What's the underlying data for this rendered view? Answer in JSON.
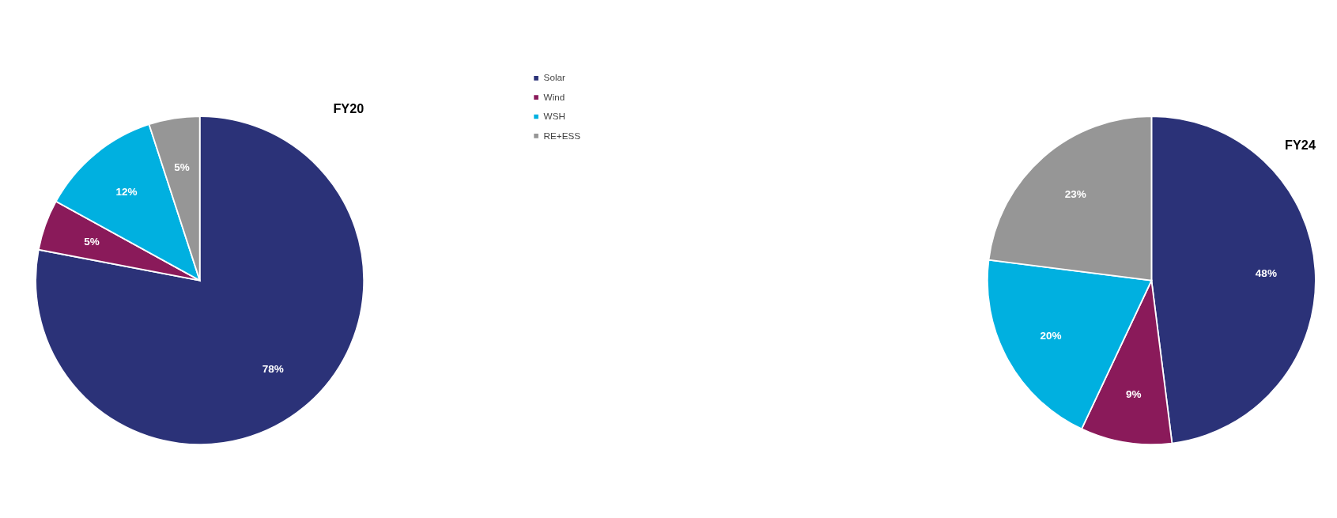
{
  "chart_data": [
    {
      "type": "pie",
      "title": "FY20",
      "categories": [
        "Solar",
        "Wind",
        "WSH",
        "RE+ESS"
      ],
      "values": [
        78,
        5,
        12,
        5
      ],
      "colors": [
        "#2b3278",
        "#8a1a5a",
        "#00b0e0",
        "#969696"
      ],
      "value_labels": [
        "78%",
        "5%",
        "12%",
        "5%"
      ],
      "legend": "top"
    },
    {
      "type": "pie",
      "title": "FY24",
      "categories": [
        null,
        null,
        null,
        null
      ],
      "values": [
        48,
        9,
        20,
        23
      ],
      "colors": [
        "#2b3278",
        "#8a1a5a",
        "#00b0e0",
        "#969696"
      ],
      "value_labels": [
        "48%",
        "9%",
        "20%",
        "23%"
      ]
    }
  ]
}
